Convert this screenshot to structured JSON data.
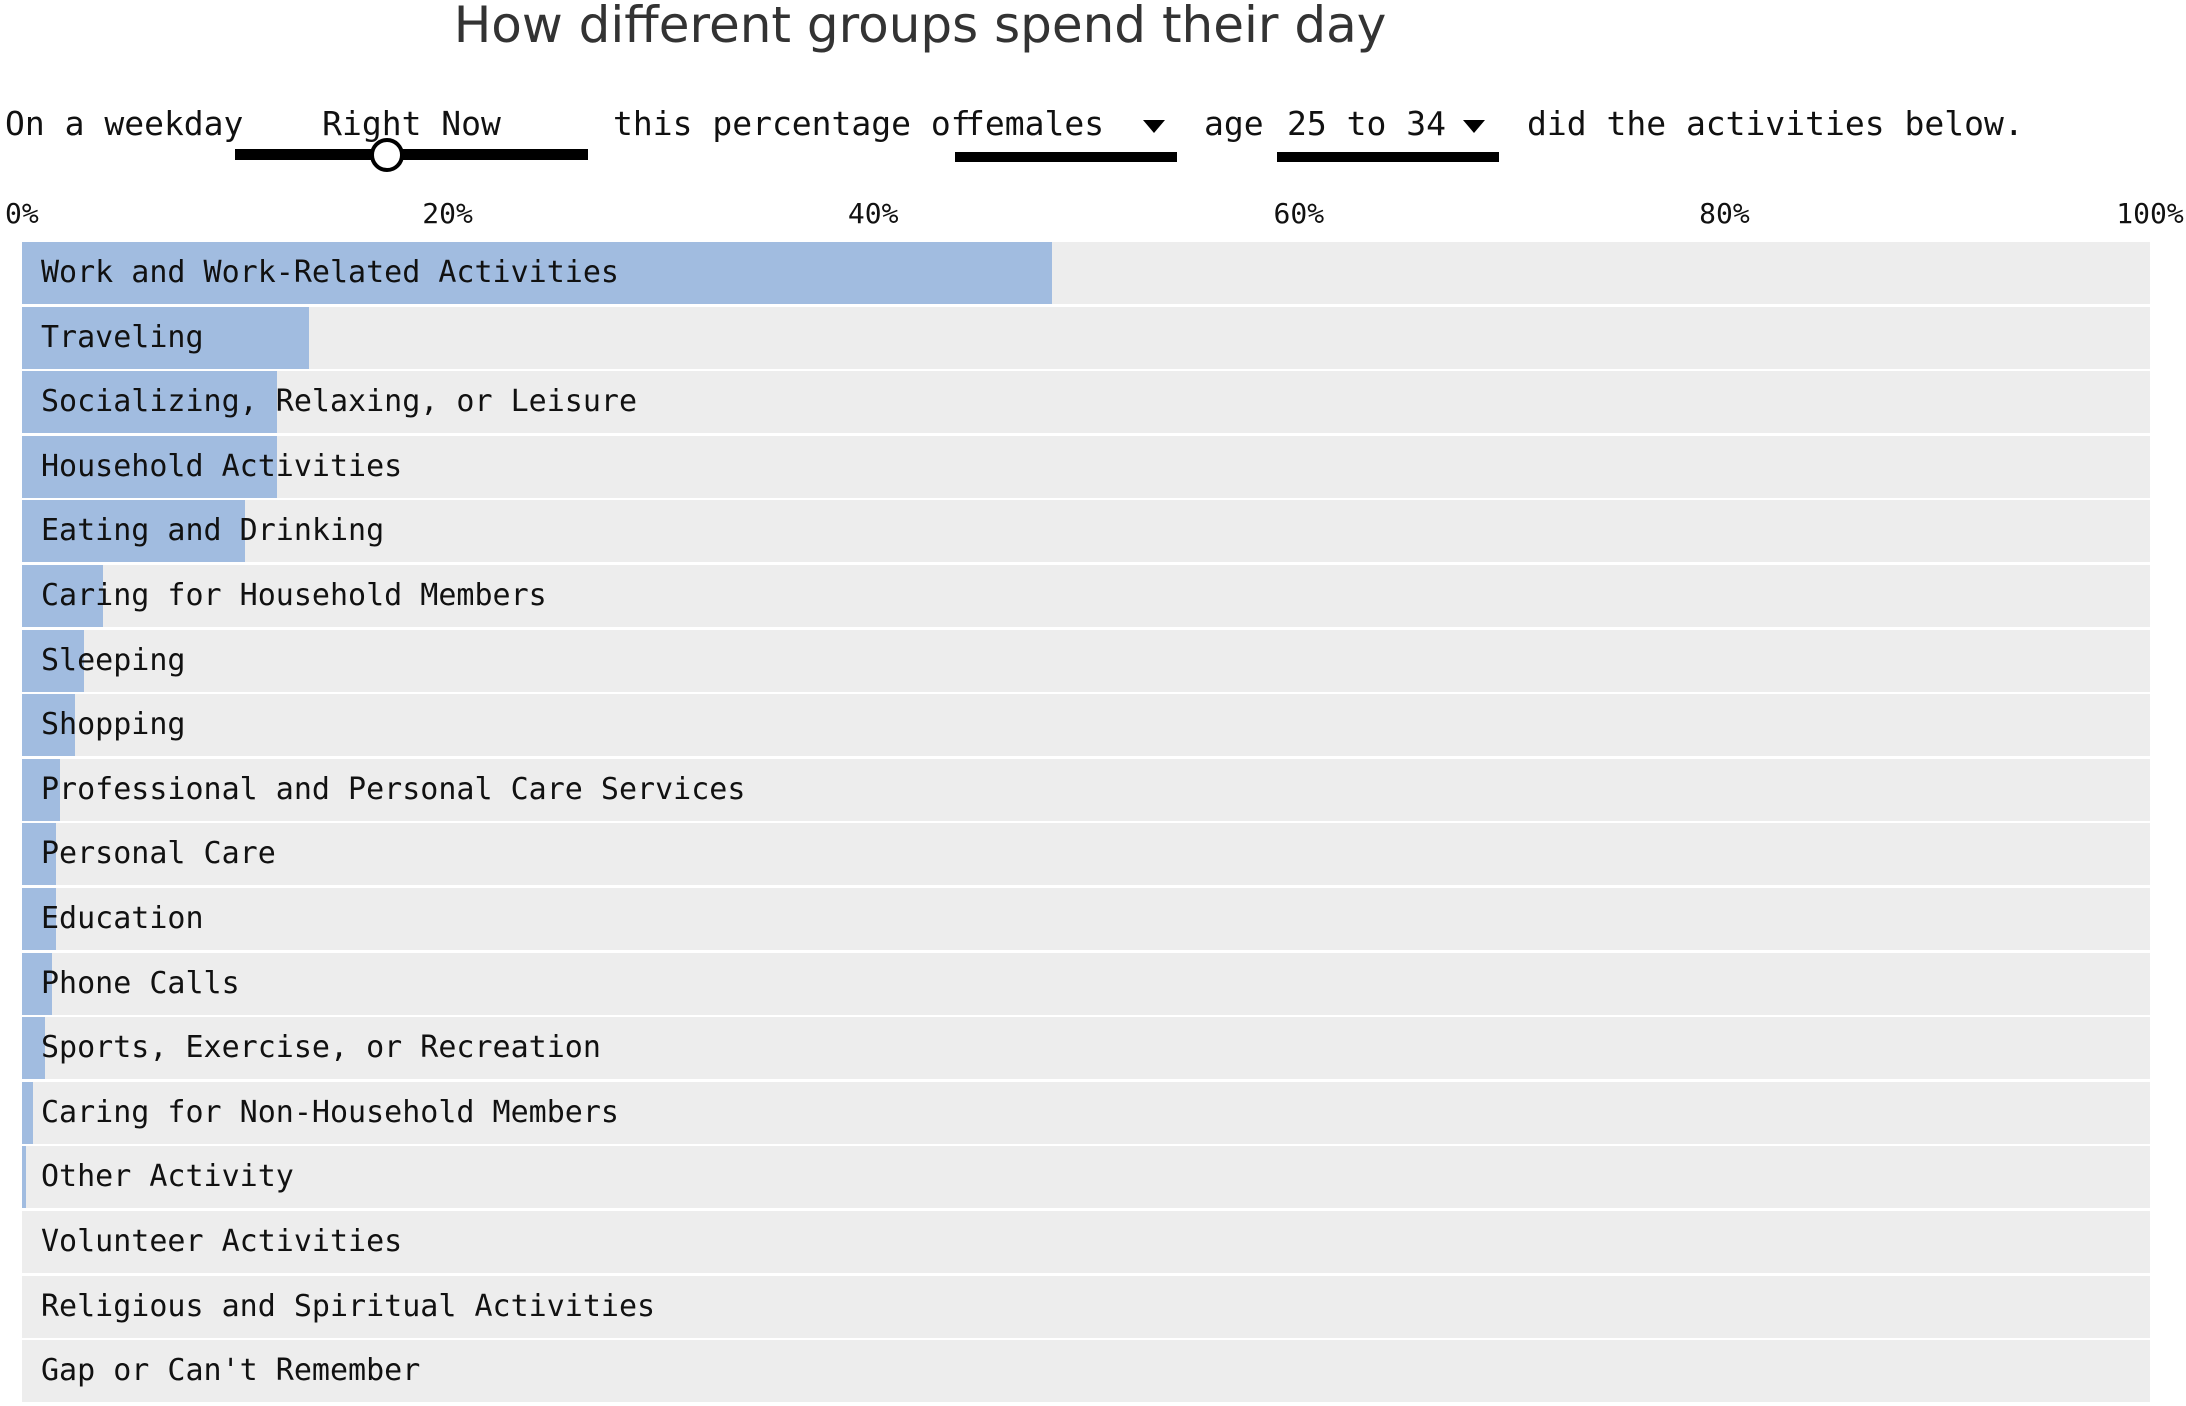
{
  "title": "How different groups spend their day",
  "controls": {
    "prefix": "On a weekday",
    "time_label": "Right Now",
    "time_fraction": 0.43,
    "middle": "this percentage of",
    "group": "females",
    "age_prefix": "age",
    "age": "25 to 34",
    "suffix": "did the activities below."
  },
  "colors": {
    "bar": "#a1bce0",
    "background_bar": "#ededed",
    "text": "#111111",
    "title": "#333333"
  },
  "chart_data": {
    "type": "bar",
    "orientation": "horizontal",
    "title": "How different groups spend their day",
    "xlim": [
      0,
      100
    ],
    "x_ticks": [
      "0%",
      "20%",
      "40%",
      "60%",
      "80%",
      "100%"
    ],
    "categories": [
      "Work and Work-Related Activities",
      "Traveling",
      "Socializing, Relaxing, or Leisure",
      "Household Activities",
      "Eating and Drinking",
      "Caring for Household Members",
      "Sleeping",
      "Shopping",
      "Professional and Personal Care Services",
      "Personal Care",
      "Education",
      "Phone Calls",
      "Sports, Exercise, or Recreation",
      "Caring for Non-Household Members",
      "Other Activity",
      "Volunteer Activities",
      "Religious and Spiritual Activities",
      "Gap or Can't Remember"
    ],
    "values": [
      48.4,
      13.5,
      12.0,
      12.0,
      10.5,
      3.8,
      2.9,
      2.5,
      1.8,
      1.6,
      1.6,
      1.4,
      1.1,
      0.5,
      0.2,
      0,
      0,
      0
    ],
    "grid": false,
    "legend": "none"
  }
}
